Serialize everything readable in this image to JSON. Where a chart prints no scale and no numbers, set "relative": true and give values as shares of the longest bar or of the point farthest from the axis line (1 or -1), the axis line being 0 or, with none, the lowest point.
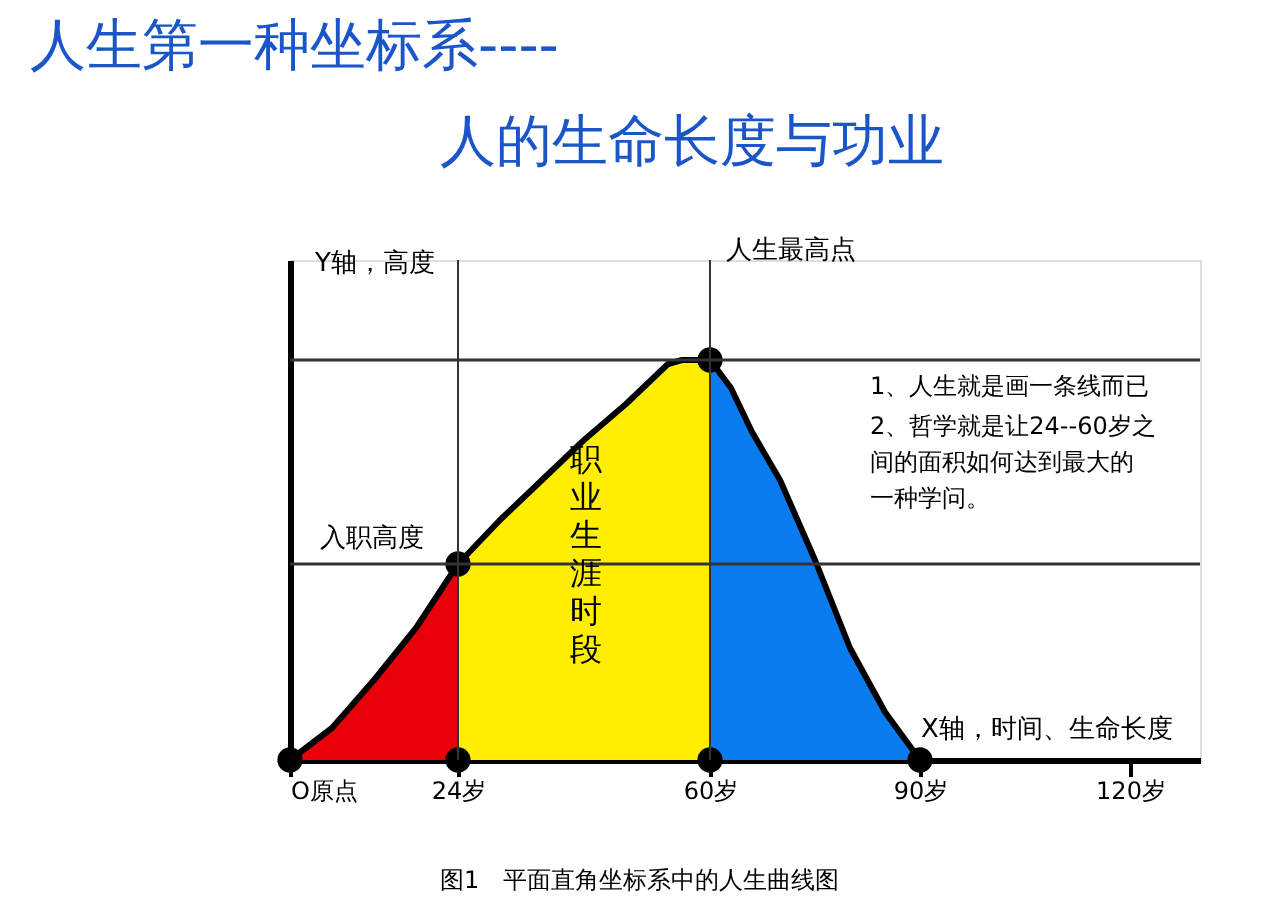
{
  "chart_data": {
    "type": "area",
    "title": "人生第一种坐标系----",
    "subtitle": "人的生命长度与功业",
    "xlabel": "X轴，时间、生命长度",
    "ylabel": "Y轴，高度",
    "relative": true,
    "tick_labels": "x",
    "grid": false,
    "legend": false,
    "xlim": [
      0,
      130
    ],
    "xticks": [
      {
        "value": 0,
        "label": "O原点"
      },
      {
        "value": 24,
        "label": "24岁"
      },
      {
        "value": 60,
        "label": "60岁"
      },
      {
        "value": 90,
        "label": "90岁"
      },
      {
        "value": 120,
        "label": "120岁"
      }
    ],
    "series": [
      {
        "color": "#e8000b",
        "x": [
          0,
          6,
          12,
          18,
          24
        ],
        "values": [
          0,
          0.08,
          0.2,
          0.33,
          0.49
        ]
      },
      {
        "color": "#ffee00",
        "x": [
          24,
          30,
          36,
          42,
          48,
          54,
          56,
          60
        ],
        "values": [
          0.49,
          0.6,
          0.7,
          0.8,
          0.89,
          0.99,
          1,
          1
        ]
      },
      {
        "color": "#0a7cf0",
        "x": [
          60,
          63,
          66,
          70,
          75,
          80,
          85,
          90
        ],
        "values": [
          1,
          0.93,
          0.82,
          0.7,
          0.5,
          0.28,
          0.12,
          0
        ]
      },
      {
        "type": "scatter",
        "color": "#000000",
        "marker": "circle",
        "x": [
          0,
          24,
          24,
          60,
          60,
          90
        ],
        "values": [
          0,
          0,
          0.49,
          1,
          0,
          0
        ]
      }
    ],
    "ref_lines": [
      {
        "axis": "x",
        "value": 24,
        "label": null
      },
      {
        "axis": "x",
        "value": 60,
        "label": "人生最高点"
      },
      {
        "axis": "y",
        "value": 0.49,
        "label": "入职高度"
      },
      {
        "axis": "y",
        "value": 1,
        "label": null
      }
    ],
    "annotations": [
      "职业生涯时段",
      "1、人生就是画一条线而已",
      "2、哲学就是让24--60岁之间的面积如何达到最大的一种学问。",
      "图1　平面直角坐标系中的人生曲线图"
    ]
  }
}
